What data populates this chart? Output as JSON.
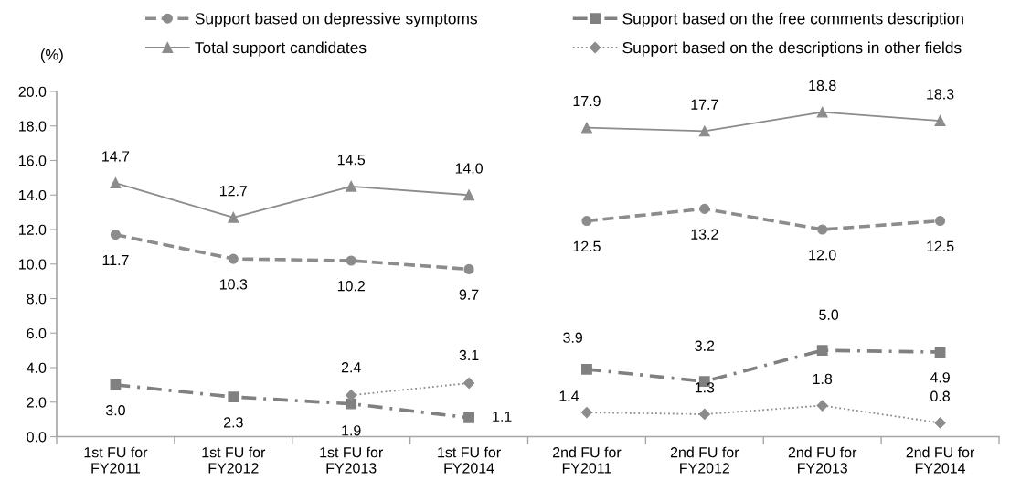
{
  "chart_data": {
    "type": "line",
    "categories": [
      "1st FU for\nFY2011",
      "1st FU for\nFY2012",
      "1st FU for\nFY2013",
      "1st FU for\nFY2014",
      "2nd FU for\nFY2011",
      "2nd FU for\nFY2012",
      "2nd FU for\nFY2013",
      "2nd FU for\nFY2014"
    ],
    "series": [
      {
        "name": "Support based on depressive symptoms",
        "color": "#8c8c8c",
        "marker": "circle",
        "line_style": "dashed",
        "values": [
          11.7,
          10.3,
          10.2,
          9.7,
          null,
          null,
          null,
          null
        ],
        "value_labels": [
          "11.7",
          "10.3",
          "10.2",
          "9.7",
          null,
          null,
          null,
          null
        ]
      },
      {
        "color": "#8c8c8c",
        "marker": "circle",
        "line_style": "dashed",
        "values": [
          null,
          null,
          null,
          null,
          12.5,
          13.2,
          12.0,
          12.5
        ],
        "value_labels": [
          null,
          null,
          null,
          null,
          "12.5",
          "13.2",
          "12.0",
          "12.5"
        ]
      },
      {
        "name": "Support based on the free comments description",
        "color": "#808080",
        "marker": "square",
        "line_style": "dashdot",
        "values": [
          3.0,
          2.3,
          1.9,
          1.1,
          null,
          null,
          null,
          null
        ],
        "value_labels": [
          "3.0",
          "2.3",
          "1.9",
          "1.1",
          null,
          null,
          null,
          null
        ]
      },
      {
        "color": "#808080",
        "marker": "square",
        "line_style": "dashdot",
        "values": [
          null,
          null,
          null,
          null,
          3.9,
          3.2,
          5.0,
          4.9
        ],
        "value_labels": [
          null,
          null,
          null,
          null,
          "3.9",
          "3.2",
          "5.0",
          "4.9"
        ]
      },
      {
        "name": "Total support candidates",
        "color": "#8c8c8c",
        "marker": "triangle",
        "line_style": "solid",
        "values": [
          14.7,
          12.7,
          14.5,
          14.0,
          null,
          null,
          null,
          null
        ],
        "value_labels": [
          "14.7",
          "12.7",
          "14.5",
          "14.0",
          null,
          null,
          null,
          null
        ]
      },
      {
        "color": "#8c8c8c",
        "marker": "triangle",
        "line_style": "solid",
        "values": [
          null,
          null,
          null,
          null,
          17.9,
          17.7,
          18.8,
          18.3
        ],
        "value_labels": [
          null,
          null,
          null,
          null,
          "17.9",
          "17.7",
          "18.8",
          "18.3"
        ]
      },
      {
        "name": "Support based on the descriptions in other fields",
        "color": "#8c8c8c",
        "marker": "diamond",
        "line_style": "dotted",
        "values": [
          null,
          null,
          2.4,
          3.1,
          null,
          null,
          null,
          null
        ],
        "value_labels": [
          null,
          null,
          "2.4",
          "3.1",
          null,
          null,
          null,
          null
        ]
      },
      {
        "color": "#8c8c8c",
        "marker": "diamond",
        "line_style": "dotted",
        "values": [
          null,
          null,
          null,
          null,
          1.4,
          1.3,
          1.8,
          0.8
        ],
        "value_labels": [
          null,
          null,
          null,
          null,
          "1.4",
          "1.3",
          "1.8",
          "0.8"
        ]
      }
    ],
    "ylabel": "(%)",
    "ylim": [
      0,
      20
    ],
    "yticks": [
      {
        "value": 0,
        "label": "0.0"
      },
      {
        "value": 2,
        "label": "2.0"
      },
      {
        "value": 4,
        "label": "4.0"
      },
      {
        "value": 6,
        "label": "6.0"
      },
      {
        "value": 8,
        "label": "8.0"
      },
      {
        "value": 10,
        "label": "10.0"
      },
      {
        "value": 12,
        "label": "12.0"
      },
      {
        "value": 14,
        "label": "14.0"
      },
      {
        "value": 16,
        "label": "16.0"
      },
      {
        "value": 18,
        "label": "18.0"
      },
      {
        "value": 20,
        "label": "20.0"
      }
    ],
    "legend": "top"
  }
}
